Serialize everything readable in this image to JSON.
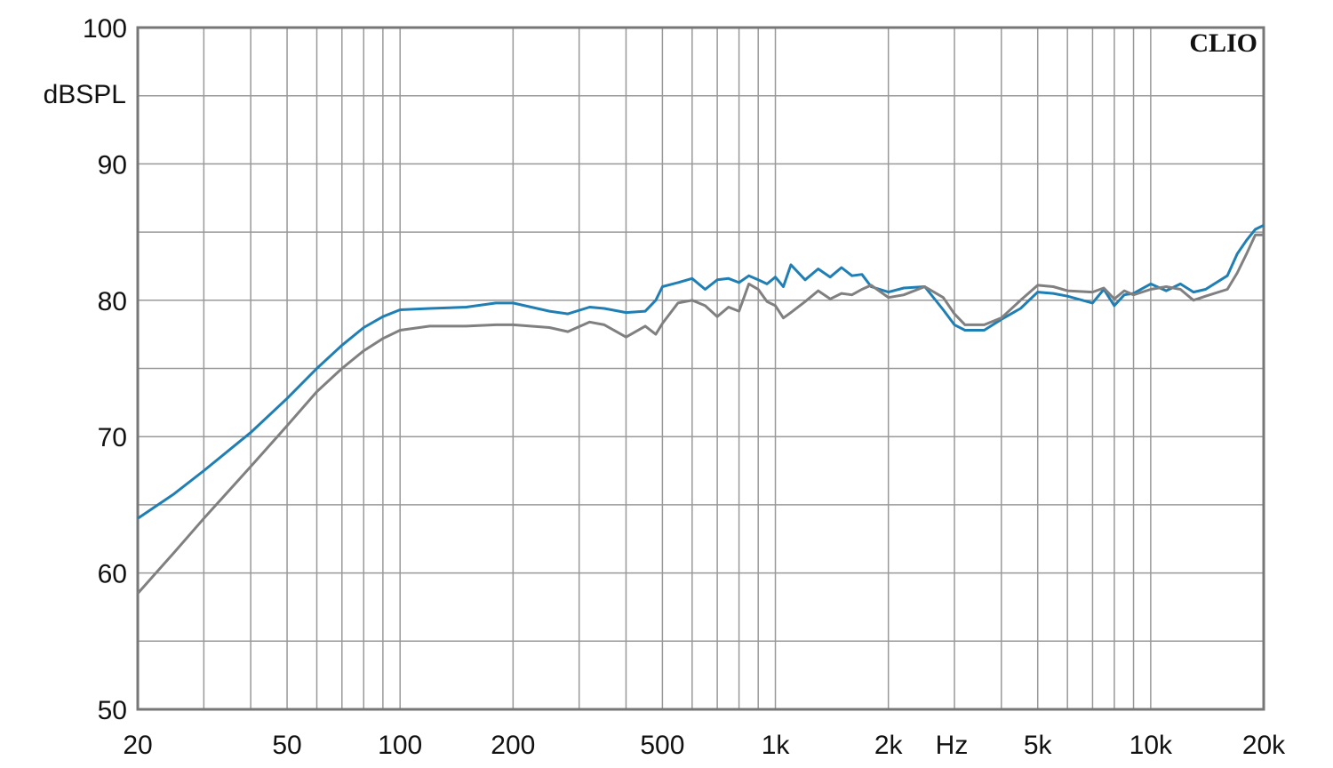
{
  "chart_data": {
    "type": "line",
    "annotation": "CLIO",
    "x_label": "Hz",
    "y_label": "dBSPL",
    "log_x": true,
    "grid": true,
    "xlim": [
      20,
      20000
    ],
    "xticks": [
      20,
      50,
      100,
      200,
      500,
      {
        "value": 1000,
        "label": "1k"
      },
      {
        "value": 2000,
        "label": "2k"
      },
      {
        "value": 5000,
        "label": "5k"
      },
      {
        "value": 10000,
        "label": "10k"
      },
      {
        "value": 20000,
        "label": "20k"
      }
    ],
    "xminor": [
      30,
      40,
      60,
      70,
      80,
      90,
      300,
      400,
      600,
      700,
      800,
      900,
      3000,
      4000,
      6000,
      7000,
      8000,
      9000
    ],
    "ylim": [
      50,
      100
    ],
    "yticks": [
      50,
      60,
      70,
      80,
      90,
      100
    ],
    "yminor": [
      55,
      65,
      75,
      85,
      95
    ],
    "x": [
      20,
      25,
      30,
      40,
      50,
      60,
      70,
      80,
      90,
      100,
      120,
      150,
      180,
      200,
      250,
      280,
      320,
      350,
      400,
      450,
      480,
      500,
      550,
      600,
      650,
      700,
      750,
      800,
      850,
      900,
      950,
      1000,
      1050,
      1100,
      1200,
      1300,
      1400,
      1500,
      1600,
      1700,
      1800,
      2000,
      2200,
      2500,
      2800,
      3000,
      3200,
      3600,
      4000,
      4500,
      5000,
      5500,
      6000,
      7000,
      7500,
      8000,
      8500,
      9000,
      10000,
      11000,
      12000,
      13000,
      14000,
      16000,
      17000,
      18000,
      19000,
      20000
    ],
    "series": [
      {
        "color": "#1f7fb5",
        "values": [
          64,
          65.8,
          67.5,
          70.3,
          72.8,
          75,
          76.7,
          78,
          78.8,
          79.3,
          79.4,
          79.5,
          79.8,
          79.8,
          79.2,
          79.0,
          79.5,
          79.4,
          79.1,
          79.2,
          80.0,
          81.0,
          81.3,
          81.6,
          80.8,
          81.5,
          81.6,
          81.3,
          81.8,
          81.5,
          81.2,
          81.7,
          81.0,
          82.6,
          81.5,
          82.3,
          81.7,
          82.4,
          81.8,
          81.9,
          81.0,
          80.6,
          80.9,
          81.0,
          79.3,
          78.2,
          77.8,
          77.8,
          78.6,
          79.4,
          80.6,
          80.5,
          80.3,
          79.8,
          80.8,
          79.6,
          80.4,
          80.5,
          81.2,
          80.7,
          81.2,
          80.6,
          80.8,
          81.8,
          83.4,
          84.4,
          85.2,
          85.5
        ]
      },
      {
        "color": "#808080",
        "values": [
          58.5,
          61.5,
          64.0,
          67.8,
          70.8,
          73.3,
          75.0,
          76.3,
          77.2,
          77.8,
          78.1,
          78.1,
          78.2,
          78.2,
          78.0,
          77.7,
          78.4,
          78.2,
          77.3,
          78.1,
          77.5,
          78.3,
          79.8,
          80.0,
          79.6,
          78.8,
          79.5,
          79.2,
          81.2,
          80.8,
          79.9,
          79.6,
          78.7,
          79.1,
          79.9,
          80.7,
          80.1,
          80.5,
          80.4,
          80.8,
          81.1,
          80.2,
          80.4,
          81.0,
          80.2,
          79.0,
          78.2,
          78.2,
          78.7,
          80.0,
          81.1,
          81.0,
          80.7,
          80.6,
          80.9,
          80.1,
          80.7,
          80.4,
          80.8,
          81.0,
          80.8,
          80.0,
          80.3,
          80.8,
          82.0,
          83.4,
          84.8,
          84.8
        ]
      }
    ]
  }
}
